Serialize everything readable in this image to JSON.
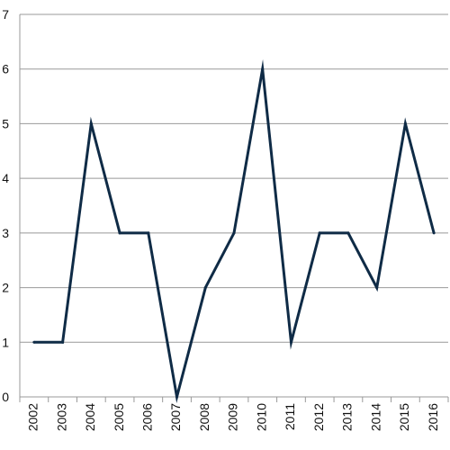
{
  "chart_data": {
    "type": "line",
    "title": "",
    "xlabel": "",
    "ylabel": "",
    "x": [
      "2002",
      "2003",
      "2004",
      "2005",
      "2006",
      "2007",
      "2008",
      "2009",
      "2010",
      "2011",
      "2012",
      "2013",
      "2014",
      "2015",
      "2016"
    ],
    "series": [
      {
        "values": [
          1,
          1,
          5,
          3,
          3,
          0,
          2,
          3,
          6,
          1,
          3,
          3,
          2,
          5,
          3
        ]
      }
    ],
    "ylim": [
      0,
      7
    ],
    "yticks": [
      "0",
      "1",
      "2",
      "3",
      "4",
      "5",
      "6",
      "7"
    ],
    "grid": true,
    "legend": "none",
    "colors": {
      "line": "#0f2b46",
      "grid": "#999999",
      "axis": "#999999"
    }
  }
}
